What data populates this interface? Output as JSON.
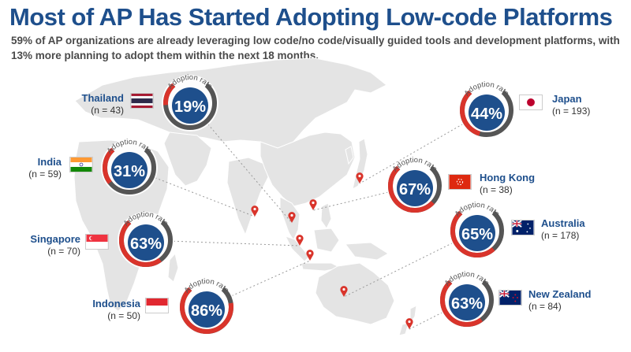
{
  "header": {
    "title": "Most of AP Has Started Adopting Low-code Platforms",
    "subtitle": "59% of AP organizations are already leveraging low code/no code/visually guided tools and development platforms, with 13% more planning to adopt them within the next 18 months."
  },
  "colors": {
    "title": "#1e4f8c",
    "ring_fill": "#d9342b",
    "ring_track": "#555555",
    "disc": "#1e4f8c",
    "map": "#e3e3e3",
    "pin": "#d9342b"
  },
  "chart_data": {
    "type": "pie",
    "title": "Most of AP Has Started Adopting Low-code Platforms",
    "ring_label": "Adoption rate",
    "series": [
      {
        "country": "Thailand",
        "n": "(n = 43)",
        "value": 19,
        "label": "19%"
      },
      {
        "country": "India",
        "n": "(n = 59)",
        "value": 31,
        "label": "31%"
      },
      {
        "country": "Singapore",
        "n": "(n = 70)",
        "value": 63,
        "label": "63%"
      },
      {
        "country": "Indonesia",
        "n": "(n = 50)",
        "value": 86,
        "label": "86%"
      },
      {
        "country": "Japan",
        "n": "(n = 193)",
        "value": 44,
        "label": "44%"
      },
      {
        "country": "Hong Kong",
        "n": "(n = 38)",
        "value": 67,
        "label": "67%"
      },
      {
        "country": "Australia",
        "n": "(n = 178)",
        "value": 65,
        "label": "65%"
      },
      {
        "country": "New Zealand",
        "n": "(n = 84)",
        "value": 63,
        "label": "63%"
      }
    ]
  }
}
